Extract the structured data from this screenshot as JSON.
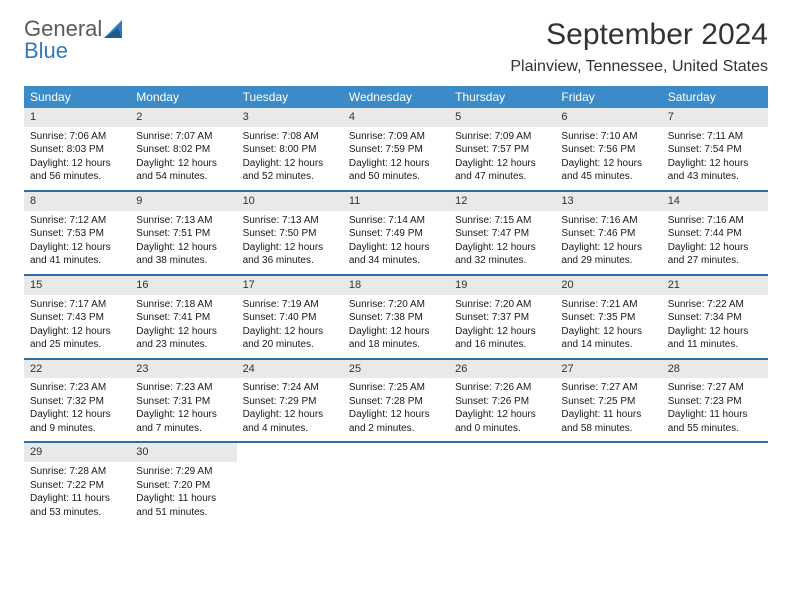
{
  "logo": {
    "text1": "General",
    "text2": "Blue"
  },
  "title": "September 2024",
  "subtitle": "Plainview, Tennessee, United States",
  "colors": {
    "header_bg": "#3b8bc9",
    "week_divider": "#2f6fa8",
    "daynum_bg": "#e9e9e9",
    "logo_gray": "#5a5a5a",
    "logo_blue": "#2f7bbf"
  },
  "day_labels": [
    "Sunday",
    "Monday",
    "Tuesday",
    "Wednesday",
    "Thursday",
    "Friday",
    "Saturday"
  ],
  "weeks": [
    [
      {
        "n": "1",
        "sr": "7:06 AM",
        "ss": "8:03 PM",
        "dl": "12 hours and 56 minutes."
      },
      {
        "n": "2",
        "sr": "7:07 AM",
        "ss": "8:02 PM",
        "dl": "12 hours and 54 minutes."
      },
      {
        "n": "3",
        "sr": "7:08 AM",
        "ss": "8:00 PM",
        "dl": "12 hours and 52 minutes."
      },
      {
        "n": "4",
        "sr": "7:09 AM",
        "ss": "7:59 PM",
        "dl": "12 hours and 50 minutes."
      },
      {
        "n": "5",
        "sr": "7:09 AM",
        "ss": "7:57 PM",
        "dl": "12 hours and 47 minutes."
      },
      {
        "n": "6",
        "sr": "7:10 AM",
        "ss": "7:56 PM",
        "dl": "12 hours and 45 minutes."
      },
      {
        "n": "7",
        "sr": "7:11 AM",
        "ss": "7:54 PM",
        "dl": "12 hours and 43 minutes."
      }
    ],
    [
      {
        "n": "8",
        "sr": "7:12 AM",
        "ss": "7:53 PM",
        "dl": "12 hours and 41 minutes."
      },
      {
        "n": "9",
        "sr": "7:13 AM",
        "ss": "7:51 PM",
        "dl": "12 hours and 38 minutes."
      },
      {
        "n": "10",
        "sr": "7:13 AM",
        "ss": "7:50 PM",
        "dl": "12 hours and 36 minutes."
      },
      {
        "n": "11",
        "sr": "7:14 AM",
        "ss": "7:49 PM",
        "dl": "12 hours and 34 minutes."
      },
      {
        "n": "12",
        "sr": "7:15 AM",
        "ss": "7:47 PM",
        "dl": "12 hours and 32 minutes."
      },
      {
        "n": "13",
        "sr": "7:16 AM",
        "ss": "7:46 PM",
        "dl": "12 hours and 29 minutes."
      },
      {
        "n": "14",
        "sr": "7:16 AM",
        "ss": "7:44 PM",
        "dl": "12 hours and 27 minutes."
      }
    ],
    [
      {
        "n": "15",
        "sr": "7:17 AM",
        "ss": "7:43 PM",
        "dl": "12 hours and 25 minutes."
      },
      {
        "n": "16",
        "sr": "7:18 AM",
        "ss": "7:41 PM",
        "dl": "12 hours and 23 minutes."
      },
      {
        "n": "17",
        "sr": "7:19 AM",
        "ss": "7:40 PM",
        "dl": "12 hours and 20 minutes."
      },
      {
        "n": "18",
        "sr": "7:20 AM",
        "ss": "7:38 PM",
        "dl": "12 hours and 18 minutes."
      },
      {
        "n": "19",
        "sr": "7:20 AM",
        "ss": "7:37 PM",
        "dl": "12 hours and 16 minutes."
      },
      {
        "n": "20",
        "sr": "7:21 AM",
        "ss": "7:35 PM",
        "dl": "12 hours and 14 minutes."
      },
      {
        "n": "21",
        "sr": "7:22 AM",
        "ss": "7:34 PM",
        "dl": "12 hours and 11 minutes."
      }
    ],
    [
      {
        "n": "22",
        "sr": "7:23 AM",
        "ss": "7:32 PM",
        "dl": "12 hours and 9 minutes."
      },
      {
        "n": "23",
        "sr": "7:23 AM",
        "ss": "7:31 PM",
        "dl": "12 hours and 7 minutes."
      },
      {
        "n": "24",
        "sr": "7:24 AM",
        "ss": "7:29 PM",
        "dl": "12 hours and 4 minutes."
      },
      {
        "n": "25",
        "sr": "7:25 AM",
        "ss": "7:28 PM",
        "dl": "12 hours and 2 minutes."
      },
      {
        "n": "26",
        "sr": "7:26 AM",
        "ss": "7:26 PM",
        "dl": "12 hours and 0 minutes."
      },
      {
        "n": "27",
        "sr": "7:27 AM",
        "ss": "7:25 PM",
        "dl": "11 hours and 58 minutes."
      },
      {
        "n": "28",
        "sr": "7:27 AM",
        "ss": "7:23 PM",
        "dl": "11 hours and 55 minutes."
      }
    ],
    [
      {
        "n": "29",
        "sr": "7:28 AM",
        "ss": "7:22 PM",
        "dl": "11 hours and 53 minutes."
      },
      {
        "n": "30",
        "sr": "7:29 AM",
        "ss": "7:20 PM",
        "dl": "11 hours and 51 minutes."
      },
      null,
      null,
      null,
      null,
      null
    ]
  ],
  "labels": {
    "sunrise": "Sunrise: ",
    "sunset": "Sunset: ",
    "daylight": "Daylight: "
  }
}
